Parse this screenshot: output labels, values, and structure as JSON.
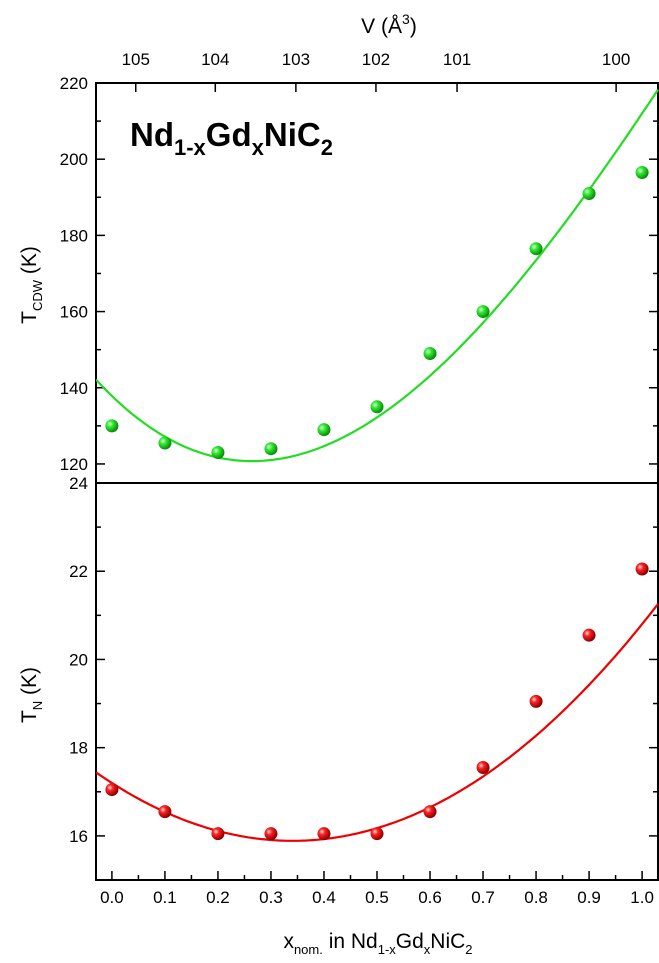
{
  "chart_data": [
    {
      "type": "scatter",
      "title_main": "Nd",
      "title_sub1": "1-x",
      "title_mid": "Gd",
      "title_sub2": "x",
      "title_end": "NiC",
      "title_sub3": "2",
      "top_axis": {
        "label_main": "V (Å",
        "label_sup": "3",
        "label_end": ")",
        "ticks": [
          {
            "label": "105",
            "x": 0.045
          },
          {
            "label": "104",
            "x": 0.195
          },
          {
            "label": "103",
            "x": 0.347
          },
          {
            "label": "102",
            "x": 0.498
          },
          {
            "label": "101",
            "x": 0.651
          },
          {
            "label": "100",
            "x": 0.951
          }
        ]
      },
      "ylabel_main": "T",
      "ylabel_sub": "CDW",
      "ylabel_end": " (K)",
      "ylim": [
        115,
        220
      ],
      "yticks": [
        120,
        140,
        160,
        180,
        200,
        220
      ],
      "color": "#22dd22",
      "x": [
        0.0,
        0.1,
        0.2,
        0.3,
        0.4,
        0.5,
        0.6,
        0.7,
        0.8,
        0.9,
        1.0
      ],
      "y": [
        130,
        125.5,
        123,
        124,
        129,
        135,
        149,
        160,
        176.5,
        191,
        196.5
      ],
      "fit_coeffs": [
        137.86,
        -134.79,
        285.03,
        -76.1
      ]
    },
    {
      "type": "scatter",
      "ylabel_main": "T",
      "ylabel_sub": "N",
      "ylabel_end": " (K)",
      "xlabel_main": "x",
      "xlabel_sub1": "nom.",
      "xlabel_mid": " in Nd",
      "xlabel_sub2": "1-x",
      "xlabel_mid2": "Gd",
      "xlabel_sub3": "x",
      "xlabel_end": "NiC",
      "xlabel_sub4": "2",
      "xlim": [
        -0.03,
        1.03
      ],
      "xticks": [
        "0.0",
        "0.1",
        "0.2",
        "0.3",
        "0.4",
        "0.5",
        "0.6",
        "0.7",
        "0.8",
        "0.9",
        "1.0"
      ],
      "ylim": [
        15,
        24
      ],
      "yticks": [
        16,
        18,
        20,
        22,
        24
      ],
      "color": "#ee0000",
      "x": [
        0.0,
        0.1,
        0.2,
        0.3,
        0.4,
        0.5,
        0.6,
        0.7,
        0.8,
        0.9,
        1.0
      ],
      "y": [
        17.05,
        16.55,
        16.05,
        16.05,
        16.05,
        16.05,
        16.55,
        17.55,
        19.05,
        20.55,
        22.05
      ],
      "fit_coeffs": [
        17.2,
        -7.7,
        11.3
      ]
    }
  ]
}
